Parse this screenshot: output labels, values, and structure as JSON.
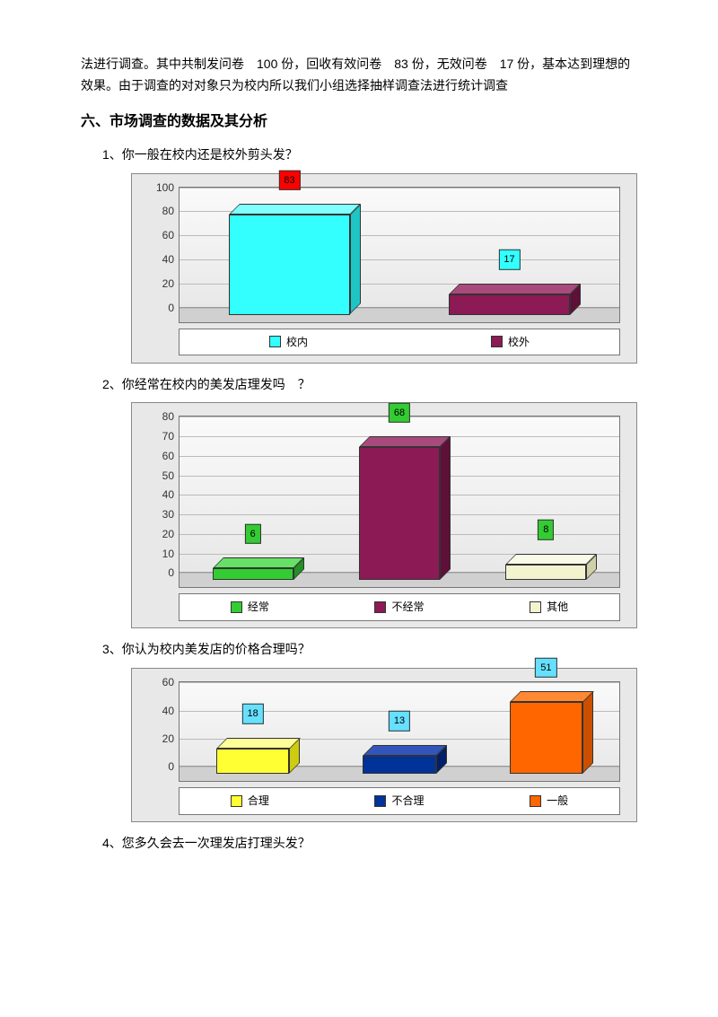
{
  "intro_p1": "法进行调查。其中共制发问卷　100 份，回收有效问卷　83 份，无效问卷　17 份，基本达到理想的效果。由于调查的对对象只为校内所以我们小组选择抽样调查法进行统计调查",
  "section_title": "六、市场调查的数据及其分析",
  "q1": "1、你一般在校内还是校外剪头发？",
  "q2": "2、你经常在校内的美发店理发吗　？",
  "q3": "3、你认为校内美发店的价格合理吗？",
  "q4": "4、您多久会去一次理发店打理头发？",
  "chart1": {
    "type": "bar-3d",
    "ylim": [
      0,
      100
    ],
    "ytick_step": 20,
    "grid_color": "#bbbbbb",
    "background": "#e8e8e8",
    "categories": [
      "校内",
      "校外"
    ],
    "values": [
      83,
      17
    ],
    "bar_colors": [
      "#33ffff",
      "#8b1a55"
    ],
    "bar_top_colors": [
      "#80ffff",
      "#a94a7c"
    ],
    "bar_side_colors": [
      "#1fc5c5",
      "#5e1039"
    ],
    "label_bg": [
      "#ff0000",
      "#33ffff"
    ],
    "label_fg": [
      "#000000",
      "#000000"
    ]
  },
  "chart2": {
    "type": "bar-3d",
    "ylim": [
      0,
      80
    ],
    "ytick_step": 10,
    "grid_color": "#bbbbbb",
    "background": "#e8e8e8",
    "categories": [
      "经常",
      "不经常",
      "其他"
    ],
    "values": [
      6,
      68,
      8
    ],
    "bar_colors": [
      "#33cc33",
      "#8b1a55",
      "#f3f3d0"
    ],
    "bar_top_colors": [
      "#66e066",
      "#a94a7c",
      "#fafae8"
    ],
    "bar_side_colors": [
      "#229022",
      "#5e1039",
      "#cfcfa8"
    ],
    "label_bg": [
      "#33cc33",
      "#33cc33",
      "#33cc33"
    ],
    "label_fg": [
      "#000000",
      "#000000",
      "#000000"
    ]
  },
  "chart3": {
    "type": "bar-3d",
    "ylim": [
      0,
      60
    ],
    "ytick_step": 20,
    "grid_color": "#bbbbbb",
    "background": "#e8e8e8",
    "categories": [
      "合理",
      "不合理",
      "一般"
    ],
    "values": [
      18,
      13,
      51
    ],
    "bar_colors": [
      "#ffff33",
      "#003399",
      "#ff6600"
    ],
    "bar_top_colors": [
      "#ffff99",
      "#3355bb",
      "#ff8833"
    ],
    "bar_side_colors": [
      "#cccc10",
      "#001f66",
      "#cc4f00"
    ],
    "label_bg": [
      "#66e0ff",
      "#66e0ff",
      "#66e0ff"
    ],
    "label_fg": [
      "#000000",
      "#000000",
      "#000000"
    ]
  }
}
